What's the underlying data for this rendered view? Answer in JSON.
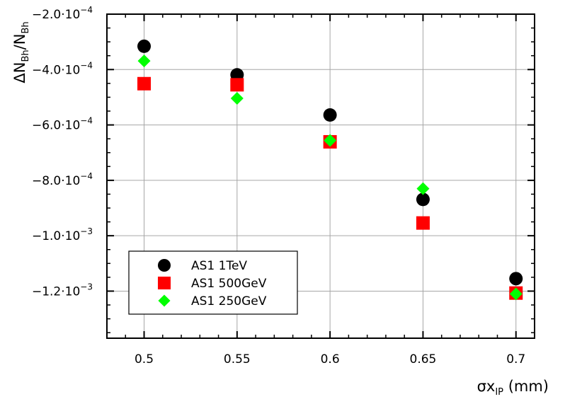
{
  "chart_data": {
    "type": "scatter",
    "xlabel": {
      "main": "σx",
      "sub": "IP",
      "unit": " (mm)"
    },
    "ylabel": {
      "main": "ΔN",
      "sub1": "Bh",
      "mid": "/N",
      "sub2": "Bh"
    },
    "xlim": [
      0.48,
      0.71
    ],
    "ylim": [
      -0.00137,
      -0.0002
    ],
    "grid": true,
    "legend_position": "bottom-left",
    "x_ticks": [
      {
        "value": 0.5,
        "label": "0.5"
      },
      {
        "value": 0.55,
        "label": "0.55"
      },
      {
        "value": 0.6,
        "label": "0.6"
      },
      {
        "value": 0.65,
        "label": "0.65"
      },
      {
        "value": 0.7,
        "label": "0.7"
      }
    ],
    "y_ticks": [
      {
        "value": -0.0002,
        "mant": "−2.0·10",
        "exp": "−4"
      },
      {
        "value": -0.0004,
        "mant": "−4.0·10",
        "exp": "−4"
      },
      {
        "value": -0.0006,
        "mant": "−6.0·10",
        "exp": "−4"
      },
      {
        "value": -0.0008,
        "mant": "−8.0·10",
        "exp": "−4"
      },
      {
        "value": -0.001,
        "mant": "−1.0·10",
        "exp": "−3"
      },
      {
        "value": -0.0012,
        "mant": "−1.2·10",
        "exp": "−3"
      }
    ],
    "series": [
      {
        "name": "AS1 1TeV",
        "marker": "circle",
        "color": "#000000",
        "x": [
          0.5,
          0.55,
          0.6,
          0.65,
          0.7
        ],
        "y": [
          -0.000316,
          -0.000419,
          -0.000564,
          -0.000869,
          -0.001155
        ]
      },
      {
        "name": "AS1 500GeV",
        "marker": "square",
        "color": "#ff0000",
        "x": [
          0.5,
          0.55,
          0.6,
          0.65,
          0.7
        ],
        "y": [
          -0.000451,
          -0.000455,
          -0.000661,
          -0.000954,
          -0.001207
        ]
      },
      {
        "name": "AS1 250GeV",
        "marker": "diamond",
        "color": "#00ff00",
        "x": [
          0.5,
          0.55,
          0.6,
          0.65,
          0.7
        ],
        "y": [
          -0.000369,
          -0.000504,
          -0.000656,
          -0.00083,
          -0.00121
        ]
      }
    ]
  }
}
